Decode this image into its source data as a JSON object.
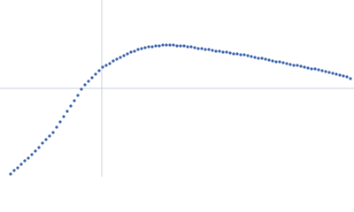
{
  "chart_data": {
    "type": "scatter",
    "color": "#3a63ad",
    "xlim": [
      -115,
      285
    ],
    "ylim": [
      -100,
      100
    ],
    "x": [
      -103,
      -99,
      -95,
      -91,
      -87,
      -83,
      -79,
      -75,
      -71,
      -67,
      -63,
      -59,
      -55,
      -51,
      -47,
      -43,
      -39,
      -35,
      -31,
      -27,
      -23,
      -19,
      -15,
      -11,
      -7,
      -3,
      1,
      5,
      9,
      13,
      17,
      21,
      25,
      29,
      33,
      37,
      41,
      45,
      49,
      53,
      57,
      61,
      65,
      69,
      73,
      77,
      81,
      85,
      89,
      93,
      97,
      101,
      105,
      109,
      113,
      117,
      121,
      125,
      129,
      133,
      137,
      141,
      145,
      149,
      153,
      157,
      161,
      165,
      169,
      173,
      177,
      181,
      185,
      189,
      193,
      197,
      201,
      205,
      209,
      213,
      217,
      221,
      225,
      229,
      233,
      237,
      241,
      245,
      249,
      253,
      257,
      261,
      265,
      269,
      273,
      277,
      281
    ],
    "y": [
      -97,
      -93,
      -90,
      -86,
      -82,
      -79,
      -75,
      -71,
      -67,
      -62,
      -58,
      -54,
      -50,
      -44,
      -38,
      -32,
      -26,
      -20,
      -14,
      -8,
      -1,
      4,
      8,
      12,
      16,
      20,
      24,
      26,
      28,
      31,
      33,
      35,
      37,
      39,
      41,
      42,
      44,
      45,
      46,
      47,
      47,
      48,
      48,
      49,
      49,
      49,
      49,
      48,
      48,
      48,
      47,
      47,
      46,
      45,
      45,
      44,
      44,
      43,
      42,
      42,
      41,
      41,
      40,
      39,
      39,
      38,
      38,
      37,
      36,
      35,
      34,
      34,
      33,
      32,
      31,
      30,
      30,
      29,
      28,
      27,
      26,
      26,
      25,
      24,
      23,
      22,
      22,
      21,
      20,
      19,
      18,
      17,
      16,
      15,
      14,
      13,
      11
    ]
  }
}
